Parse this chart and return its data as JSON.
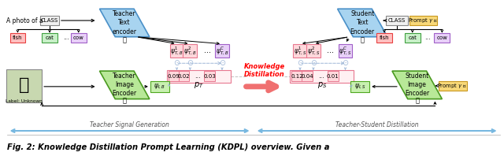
{
  "bg_color": "#ffffff",
  "caption": "Fig. 2: Knowledge Distillation Prompt Learning (KDPL) overview. Given a",
  "teacher_signal_label": "Teacher Signal Generation",
  "teacher_student_label": "Teacher-Student Distillation",
  "kd_label": "Knowledge\nDistillation",
  "pt_values": [
    "0.09",
    "0.02",
    "0.03"
  ],
  "ps_values": [
    "0.12",
    "0.04",
    "0.01"
  ],
  "teacher_text_enc": "Teacher\nText\nencoder",
  "student_text_enc": "Student\nText\nEncoder",
  "teacher_img_enc": "Teacher\nImage\nEncoder",
  "student_img_enc": "Student\nImage\nEncoder",
  "psi_T_labels": [
    "$\\psi^1_{T,B}$",
    "$\\psi^2_{T,B}$",
    "$\\psi^C_{T,B}$"
  ],
  "psi_S_labels": [
    "$\\psi^1_{T,S}$",
    "$\\psi^2_{T,S}$",
    "$\\psi^C_{T,S}$"
  ],
  "psi_IB": "$\\psi_{I,B}$",
  "psi_IS": "$\\psi_{I,S}$",
  "pT": "$p_T$",
  "pS": "$p_S$",
  "class_items_left": [
    "fish",
    "cat",
    "cow"
  ],
  "class_items_right": [
    "fish",
    "cat",
    "cow"
  ],
  "blue_enc_fc": "#a8d4f0",
  "blue_enc_ec": "#4a90c8",
  "green_enc_fc": "#b8e898",
  "green_enc_ec": "#4a9a20",
  "pink_box_fc": "#ffd8dc",
  "pink_box_ec": "#e87890",
  "purple_box_fc": "#e8d0f8",
  "purple_box_ec": "#a060c8",
  "orange_box_fc": "#f8d878",
  "orange_box_ec": "#c89820",
  "red_class_fc": "#ffc0c0",
  "red_class_ec": "#e84040",
  "green_class_fc": "#c8f0c8",
  "green_class_ec": "#40a040",
  "purple_class_fc": "#e8d0f8",
  "purple_class_ec": "#a060c8",
  "gray_class_fc": "#f0f0f0",
  "gray_class_ec": "#888888",
  "green_psi_fc": "#c8f0b0",
  "green_psi_ec": "#50a820",
  "double_arrow_color": "#78b8e0",
  "kd_arrow_color": "#f07070",
  "odot_color": "#a0b8d8"
}
